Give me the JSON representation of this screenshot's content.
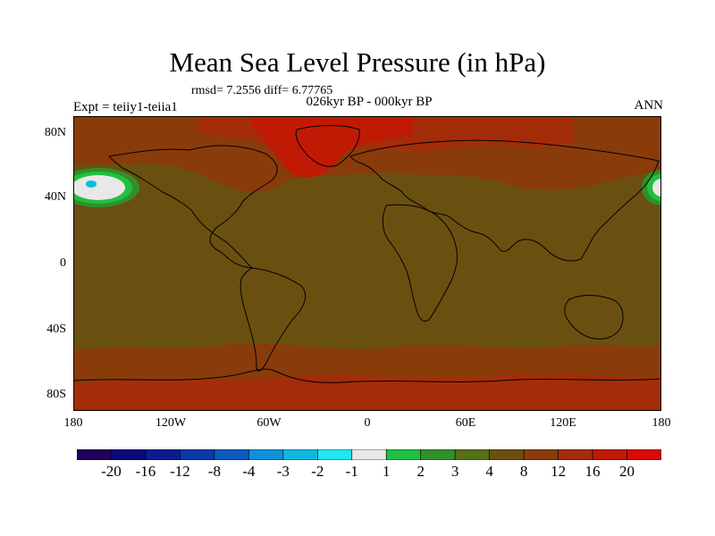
{
  "title": "Mean Sea Level Pressure (in hPa)",
  "stats": "rmsd= 7.2556 diff= 6.77765",
  "period": "026kyr BP - 000kyr BP",
  "experiment": "Expt = teiiy1-teiia1",
  "season": "ANN",
  "lat_labels": [
    "80N",
    "40N",
    "0",
    "40S",
    "80S"
  ],
  "lon_labels": [
    "180",
    "120W",
    "60W",
    "0",
    "60E",
    "120E",
    "180"
  ],
  "colorbar": {
    "labels": [
      "-20",
      "-16",
      "-12",
      "-8",
      "-4",
      "-3",
      "-2",
      "-1",
      "1",
      "2",
      "3",
      "4",
      "8",
      "12",
      "16",
      "20"
    ],
    "colors": [
      "#20005a",
      "#0a0a78",
      "#0c1c90",
      "#0a3aa8",
      "#0a5ac0",
      "#1090d8",
      "#10b8e0",
      "#20e8f0",
      "#e8e8e8",
      "#20c040",
      "#30902a",
      "#557017",
      "#6a5010",
      "#8a3b0a",
      "#a32d08",
      "#c01a05",
      "#d80a04"
    ]
  },
  "map_colors": {
    "base": "#6a5010",
    "band_orange": "#8a3b0a",
    "band_red": "#c01a05",
    "contour_white": "#e8e8e8",
    "contour_green": "#30902a",
    "contour_cyan": "#10b8e0",
    "coast": "#000000"
  }
}
